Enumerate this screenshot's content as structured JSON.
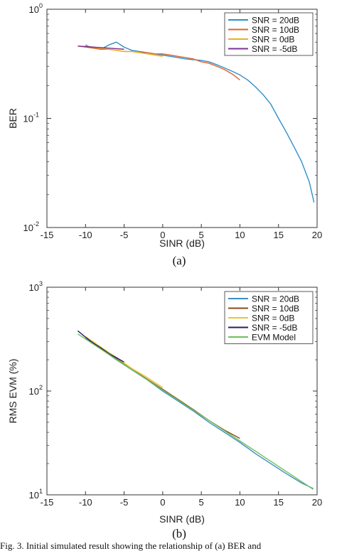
{
  "caption": "Fig. 3.  Initial simulated result showing the relationship of (a) BER and",
  "chart_data": [
    {
      "type": "line",
      "panel_label": "(a)",
      "xlabel": "SINR (dB)",
      "ylabel": "BER",
      "xlim": [
        -15,
        20
      ],
      "ylim": [
        0.01,
        1
      ],
      "yscale": "log",
      "xticks": [
        "-15",
        "-10",
        "-5",
        "0",
        "5",
        "10",
        "15",
        "20"
      ],
      "yticks": [
        {
          "value": 1,
          "mantissa": "10",
          "exp": "0"
        },
        {
          "value": 0.1,
          "mantissa": "10",
          "exp": "-1"
        },
        {
          "value": 0.01,
          "mantissa": "10",
          "exp": "-2"
        }
      ],
      "grid": false,
      "legend_position": "top-right",
      "series": [
        {
          "name": "SNR = 20dB",
          "color": "#2f8fce",
          "x": [
            -10,
            -9,
            -8,
            -7,
            -6,
            -5,
            -4,
            -3,
            -2,
            -1,
            0,
            1,
            2,
            3,
            4,
            5,
            6,
            7,
            8,
            9,
            10,
            11,
            12,
            13,
            14,
            15,
            16,
            17,
            18,
            19,
            19.6
          ],
          "y": [
            0.47,
            0.44,
            0.43,
            0.47,
            0.5,
            0.45,
            0.42,
            0.41,
            0.4,
            0.39,
            0.38,
            0.37,
            0.36,
            0.35,
            0.345,
            0.34,
            0.33,
            0.31,
            0.29,
            0.27,
            0.25,
            0.225,
            0.195,
            0.165,
            0.135,
            0.1,
            0.075,
            0.055,
            0.04,
            0.026,
            0.017
          ]
        },
        {
          "name": "SNR = 10dB",
          "color": "#e2622b",
          "x": [
            -11,
            -10,
            -9,
            -8,
            -7,
            -6,
            -5,
            -4,
            -3,
            -2,
            -1,
            0,
            1,
            2,
            3,
            4,
            5,
            6,
            7,
            8,
            9,
            10
          ],
          "y": [
            0.46,
            0.45,
            0.44,
            0.43,
            0.43,
            0.42,
            0.41,
            0.41,
            0.4,
            0.4,
            0.39,
            0.39,
            0.38,
            0.37,
            0.36,
            0.35,
            0.33,
            0.32,
            0.3,
            0.28,
            0.255,
            0.225
          ]
        },
        {
          "name": "SNR = 0dB",
          "color": "#e9b224",
          "x": [
            -10,
            -9,
            -8,
            -7,
            -6,
            -5,
            -4,
            -3,
            -2,
            -1,
            0
          ],
          "y": [
            0.46,
            0.45,
            0.44,
            0.43,
            0.42,
            0.41,
            0.41,
            0.4,
            0.39,
            0.38,
            0.37
          ]
        },
        {
          "name": "SNR = -5dB",
          "color": "#7b3294",
          "x": [
            -11,
            -10,
            -9,
            -8,
            -7,
            -6,
            -5
          ],
          "y": [
            0.46,
            0.455,
            0.45,
            0.445,
            0.44,
            0.435,
            0.43
          ]
        }
      ]
    },
    {
      "type": "line",
      "panel_label": "(b)",
      "xlabel": "SINR (dB)",
      "ylabel": "RMS EVM (%)",
      "xlim": [
        -15,
        20
      ],
      "ylim": [
        10,
        1000
      ],
      "yscale": "log",
      "xticks": [
        "-15",
        "-10",
        "-5",
        "0",
        "5",
        "10",
        "15",
        "20"
      ],
      "yticks": [
        {
          "value": 1000,
          "mantissa": "10",
          "exp": "3"
        },
        {
          "value": 100,
          "mantissa": "10",
          "exp": "2"
        },
        {
          "value": 10,
          "mantissa": "10",
          "exp": "1"
        }
      ],
      "grid": false,
      "legend_position": "top-right",
      "series": [
        {
          "name": "SNR = 20dB",
          "color": "#3a8fc0",
          "x": [
            -10,
            -8,
            -6,
            -4,
            -2,
            0,
            2,
            4,
            6,
            8,
            10,
            12,
            14,
            16,
            18,
            19.5
          ],
          "y": [
            320,
            255,
            200,
            160,
            128,
            100,
            80,
            64,
            50,
            40,
            32,
            25,
            20,
            16,
            13,
            11.5
          ]
        },
        {
          "name": "SNR = 10dB",
          "color": "#8c4a1c",
          "x": [
            -10,
            -8,
            -6,
            -4,
            -2,
            0,
            2,
            4,
            6,
            8,
            10
          ],
          "y": [
            330,
            260,
            205,
            162,
            130,
            104,
            83,
            66,
            52,
            42,
            35
          ]
        },
        {
          "name": "SNR = 0dB",
          "color": "#f2c230",
          "x": [
            -10,
            -8,
            -6,
            -4,
            -2,
            0
          ],
          "y": [
            335,
            265,
            210,
            165,
            135,
            108
          ]
        },
        {
          "name": "SNR = -5dB",
          "color": "#20206e",
          "x": [
            -11,
            -10,
            -9,
            -8,
            -7,
            -6,
            -5
          ],
          "y": [
            380,
            330,
            290,
            260,
            230,
            210,
            190
          ]
        },
        {
          "name": "EVM Model",
          "color": "#6fbf5a",
          "x": [
            -11,
            19.5
          ],
          "y": [
            355,
            11.3
          ]
        }
      ]
    }
  ]
}
